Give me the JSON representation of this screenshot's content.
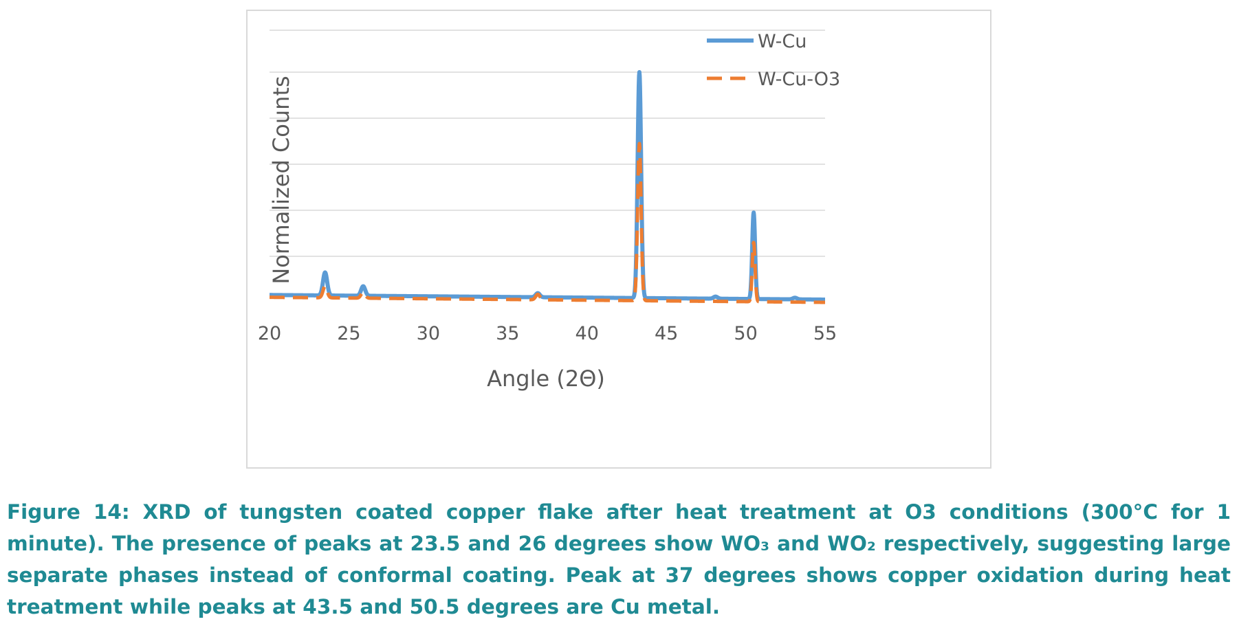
{
  "chart_data": {
    "type": "line",
    "xlabel": "Angle (2Θ)",
    "ylabel": "Normalized Counts",
    "xlim": [
      20,
      55
    ],
    "ylim": [
      0,
      1.05
    ],
    "x_ticks": [
      "20",
      "25",
      "30",
      "35",
      "40",
      "45",
      "50",
      "55"
    ],
    "y_gridlines": [
      0.2,
      0.4,
      0.6,
      0.8,
      1.0
    ],
    "y_tick_labels_shown": false,
    "grid": "horizontal",
    "legend": "top-right",
    "series": [
      {
        "name": "W-Cu",
        "color": "#5b9bd5",
        "style": "solid",
        "baseline": [
          [
            20,
            0.032
          ],
          [
            55,
            0.012
          ]
        ],
        "peaks": [
          {
            "x": 23.5,
            "y": 0.13
          },
          {
            "x": 25.9,
            "y": 0.07
          },
          {
            "x": 36.9,
            "y": 0.04
          },
          {
            "x": 43.3,
            "y": 1.0
          },
          {
            "x": 48.1,
            "y": 0.025
          },
          {
            "x": 50.5,
            "y": 0.39
          },
          {
            "x": 53.1,
            "y": 0.02
          }
        ]
      },
      {
        "name": "W-Cu-O3",
        "color": "#ed7d31",
        "style": "dashed",
        "baseline": [
          [
            20,
            0.022
          ],
          [
            55,
            0.0
          ]
        ],
        "peaks": [
          {
            "x": 23.5,
            "y": 0.07
          },
          {
            "x": 25.9,
            "y": 0.045
          },
          {
            "x": 36.9,
            "y": 0.035
          },
          {
            "x": 43.3,
            "y": 0.69
          },
          {
            "x": 50.5,
            "y": 0.26
          }
        ]
      }
    ]
  },
  "caption": "Figure 14: XRD of tungsten coated copper flake after heat treatment at O3 conditions (300°C for 1 minute). The presence of peaks at 23.5 and 26 degrees show WO₃ and WO₂ respectively, suggesting large separate phases instead of conformal coating. Peak at 37 degrees shows copper oxidation during heat treatment while peaks at 43.5 and 50.5 degrees are Cu metal."
}
